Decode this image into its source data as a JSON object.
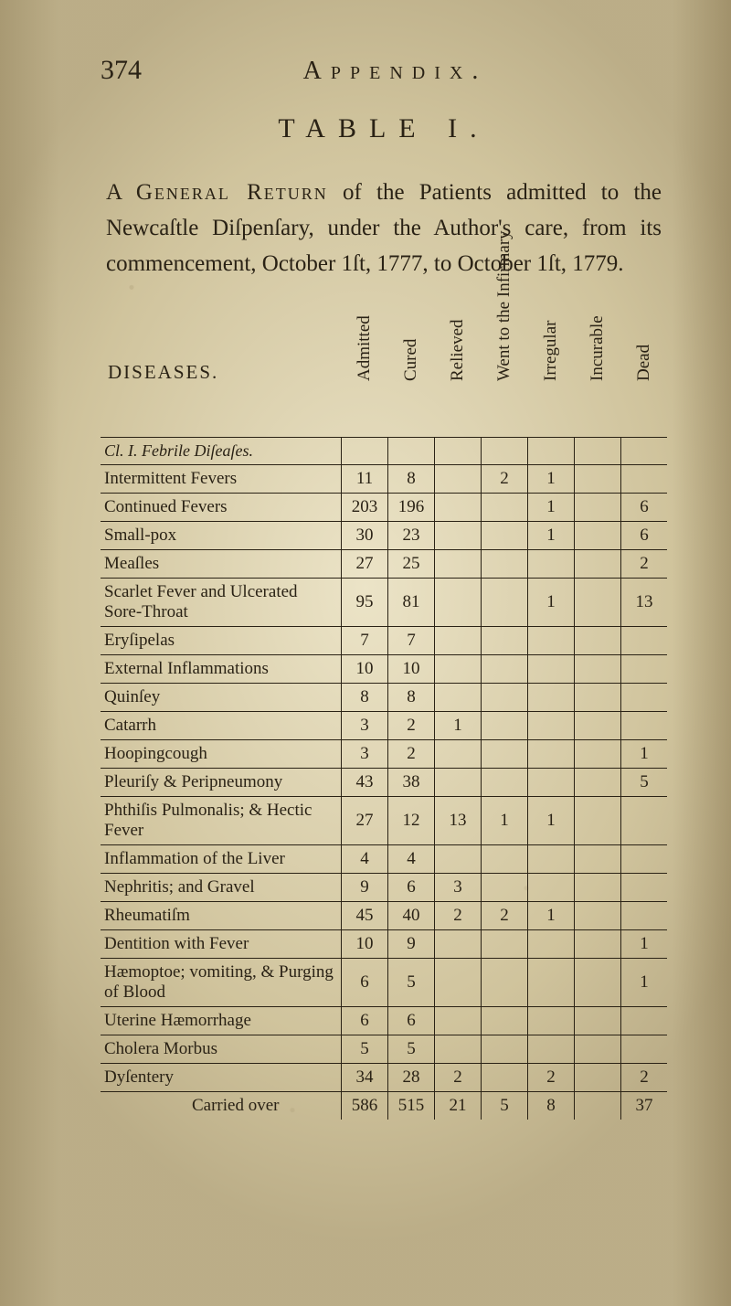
{
  "page_number": "374",
  "running_head": "Appendix.",
  "table_title": "TABLE I.",
  "intro_html": "A <span class='sc'>General Return</span> of the Patients admitted to the Newcaſtle Diſpenſary, under the Author's care, from its commencement, October 1ſt, 1777, to October 1ſt, 1779.",
  "head": {
    "diseases": "DISEASES.",
    "cols": [
      "Admitted",
      "Cured",
      "Relieved",
      "Went to the Infirmary",
      "Irregular",
      "Incurable",
      "Dead"
    ]
  },
  "section_label": "Cl. I.  Febrile Diſeaſes.",
  "rows": [
    {
      "label": "Intermittent Fevers",
      "vals": [
        "11",
        "8",
        "",
        "2",
        "1",
        "",
        ""
      ]
    },
    {
      "label": "Continued Fevers",
      "vals": [
        "203",
        "196",
        "",
        "",
        "1",
        "",
        "6"
      ]
    },
    {
      "label": "Small-pox",
      "vals": [
        "30",
        "23",
        "",
        "",
        "1",
        "",
        "6"
      ]
    },
    {
      "label": "Meaſles",
      "vals": [
        "27",
        "25",
        "",
        "",
        "",
        "",
        "2"
      ]
    },
    {
      "label": "Scarlet Fever and Ulcerated Sore-Throat",
      "vals": [
        "95",
        "81",
        "",
        "",
        "1",
        "",
        "13"
      ]
    },
    {
      "label": "Eryſipelas",
      "vals": [
        "7",
        "7",
        "",
        "",
        "",
        "",
        ""
      ]
    },
    {
      "label": "External Inflammations",
      "vals": [
        "10",
        "10",
        "",
        "",
        "",
        "",
        ""
      ]
    },
    {
      "label": "Quinſey",
      "vals": [
        "8",
        "8",
        "",
        "",
        "",
        "",
        ""
      ]
    },
    {
      "label": "Catarrh",
      "vals": [
        "3",
        "2",
        "1",
        "",
        "",
        "",
        ""
      ]
    },
    {
      "label": "Hoopingcough",
      "vals": [
        "3",
        "2",
        "",
        "",
        "",
        "",
        "1"
      ]
    },
    {
      "label": "Pleuriſy & Peripneumony",
      "vals": [
        "43",
        "38",
        "",
        "",
        "",
        "",
        "5"
      ]
    },
    {
      "label": "Phthiſis Pulmonalis; & Hectic Fever",
      "vals": [
        "27",
        "12",
        "13",
        "1",
        "1",
        "",
        ""
      ]
    },
    {
      "label": "Inflammation of the Liver",
      "vals": [
        "4",
        "4",
        "",
        "",
        "",
        "",
        ""
      ]
    },
    {
      "label": "Nephritis; and Gravel",
      "vals": [
        "9",
        "6",
        "3",
        "",
        "",
        "",
        ""
      ]
    },
    {
      "label": "Rheumatiſm",
      "vals": [
        "45",
        "40",
        "2",
        "2",
        "1",
        "",
        ""
      ]
    },
    {
      "label": "Dentition with Fever",
      "vals": [
        "10",
        "9",
        "",
        "",
        "",
        "",
        "1"
      ]
    },
    {
      "label": "Hæmoptoe; vomiting, & Purging of Blood",
      "vals": [
        "6",
        "5",
        "",
        "",
        "",
        "",
        "1"
      ]
    },
    {
      "label": "Uterine Hæmorrhage",
      "vals": [
        "6",
        "6",
        "",
        "",
        "",
        "",
        ""
      ]
    },
    {
      "label": "Cholera Morbus",
      "vals": [
        "5",
        "5",
        "",
        "",
        "",
        "",
        ""
      ]
    },
    {
      "label": "Dyſentery",
      "vals": [
        "34",
        "28",
        "2",
        "",
        "2",
        "",
        "2"
      ]
    }
  ],
  "carried": {
    "label": "Carried over",
    "vals": [
      "586",
      "515",
      "21",
      "5",
      "8",
      "",
      "37"
    ]
  }
}
